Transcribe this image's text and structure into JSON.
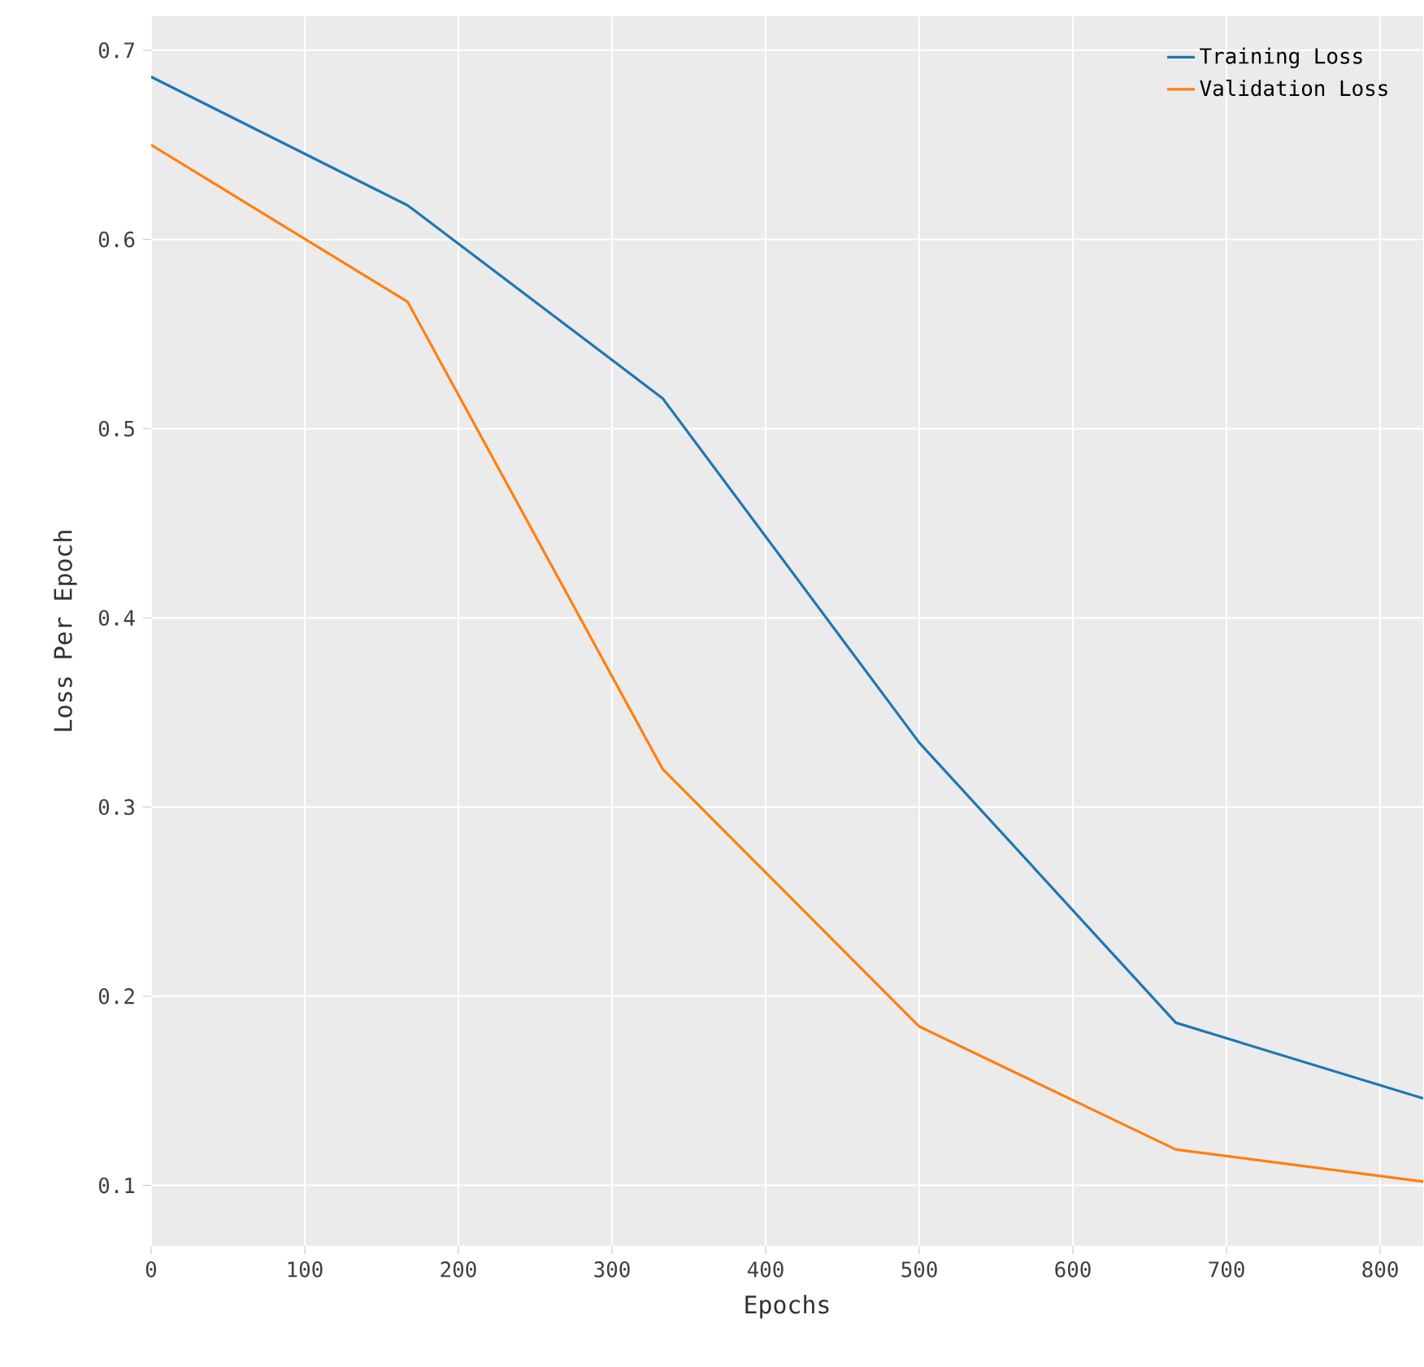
{
  "chart_data": {
    "type": "line",
    "xlabel": "Epochs",
    "ylabel": "Loss Per Epoch",
    "xlim": [
      0,
      828
    ],
    "ylim": [
      0.068,
      0.718
    ],
    "xticks": [
      0,
      100,
      200,
      300,
      400,
      500,
      600,
      700,
      800
    ],
    "yticks": [
      0.1,
      0.2,
      0.3,
      0.4,
      0.5,
      0.6,
      0.7
    ],
    "grid": true,
    "legend": "top right",
    "marker": "none",
    "line_style": "solid",
    "series": [
      {
        "name": "Training Loss",
        "color": "#1f77b4",
        "x": [
          0,
          167,
          333,
          500,
          667,
          828
        ],
        "values": [
          0.686,
          0.618,
          0.516,
          0.334,
          0.186,
          0.146
        ]
      },
      {
        "name": "Validation Loss",
        "color": "#ff7f0e",
        "x": [
          0,
          167,
          333,
          500,
          667,
          828
        ],
        "values": [
          0.65,
          0.567,
          0.32,
          0.184,
          0.119,
          0.102
        ]
      }
    ]
  }
}
